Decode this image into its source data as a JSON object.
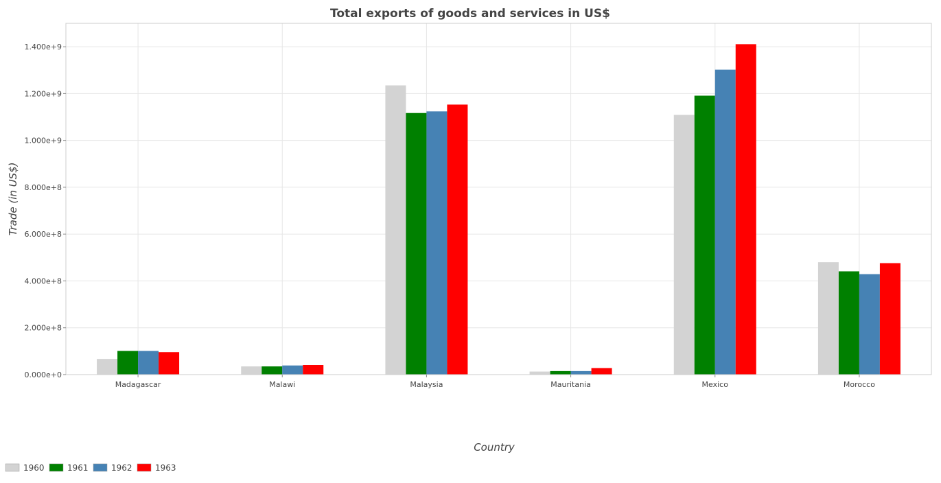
{
  "chart_data": {
    "type": "bar",
    "title": "Total exports of goods and services in US$",
    "xlabel": "Country",
    "ylabel": "Trade (in US$)",
    "ylim": [
      0,
      1500000000
    ],
    "yticks": [
      0,
      200000000,
      400000000,
      600000000,
      800000000,
      1000000000,
      1200000000,
      1400000000
    ],
    "ytick_labels": [
      "0.000e+0",
      "2.000e+8",
      "4.000e+8",
      "6.000e+8",
      "8.000e+8",
      "1.000e+9",
      "1.200e+9",
      "1.400e+9"
    ],
    "grid": true,
    "legend_position": "bottom-left",
    "categories": [
      "Madagascar",
      "Malawi",
      "Malaysia",
      "Mauritania",
      "Mexico",
      "Morocco"
    ],
    "series": [
      {
        "name": "1960",
        "color": "#d3d3d3",
        "values": [
          67000000,
          35000000,
          1235000000,
          13000000,
          1109000000,
          480000000
        ]
      },
      {
        "name": "1961",
        "color": "#008000",
        "values": [
          101000000,
          35000000,
          1117000000,
          15000000,
          1191000000,
          441000000
        ]
      },
      {
        "name": "1962",
        "color": "#4682b4",
        "values": [
          101000000,
          39000000,
          1124000000,
          15000000,
          1302000000,
          429000000
        ]
      },
      {
        "name": "1963",
        "color": "#ff0000",
        "values": [
          96000000,
          41000000,
          1153000000,
          28000000,
          1411000000,
          476000000
        ]
      }
    ]
  }
}
